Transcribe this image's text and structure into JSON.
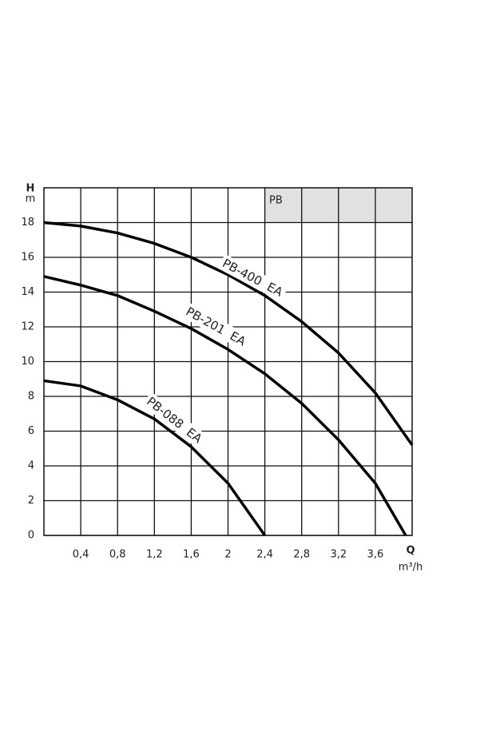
{
  "chart_data": {
    "type": "line",
    "y_label": "H",
    "y_unit": "m",
    "x_label": "Q",
    "x_unit": "m³/h",
    "annotation": "PB",
    "xlim": [
      0,
      4
    ],
    "ylim": [
      0,
      20
    ],
    "xticks": [
      {
        "value": 0.4,
        "label": "0,4"
      },
      {
        "value": 0.8,
        "label": "0,8"
      },
      {
        "value": 1.2,
        "label": "1,2"
      },
      {
        "value": 1.6,
        "label": "1,6"
      },
      2,
      {
        "value": 2.4,
        "label": "2,4"
      },
      {
        "value": 2.8,
        "label": "2,8"
      },
      {
        "value": 3.2,
        "label": "3,2"
      },
      {
        "value": 3.6,
        "label": "3,6"
      }
    ],
    "yticks": [
      0,
      2,
      4,
      6,
      8,
      10,
      12,
      14,
      16,
      18
    ],
    "grid": true,
    "series": [
      {
        "name": "PB-400  EA",
        "color": "#000000",
        "x": [
          0,
          0.4,
          0.8,
          1.2,
          1.6,
          2.0,
          2.4,
          2.8,
          3.2,
          3.6,
          4.0
        ],
        "values": [
          18,
          17.8,
          17.4,
          16.8,
          16.0,
          15.0,
          13.8,
          12.3,
          10.5,
          8.2,
          5.2
        ]
      },
      {
        "name": "PB-201  EA",
        "color": "#000000",
        "x": [
          0,
          0.4,
          0.8,
          1.2,
          1.6,
          2.0,
          2.4,
          2.8,
          3.2,
          3.6,
          3.93
        ],
        "values": [
          14.9,
          14.4,
          13.8,
          12.9,
          11.9,
          10.7,
          9.3,
          7.6,
          5.5,
          3.0,
          0
        ]
      },
      {
        "name": "PB-088  EA",
        "color": "#000000",
        "x": [
          0,
          0.4,
          0.8,
          1.2,
          1.6,
          2.0,
          2.4
        ],
        "values": [
          8.9,
          8.6,
          7.8,
          6.7,
          5.1,
          3.0,
          0
        ]
      }
    ]
  }
}
